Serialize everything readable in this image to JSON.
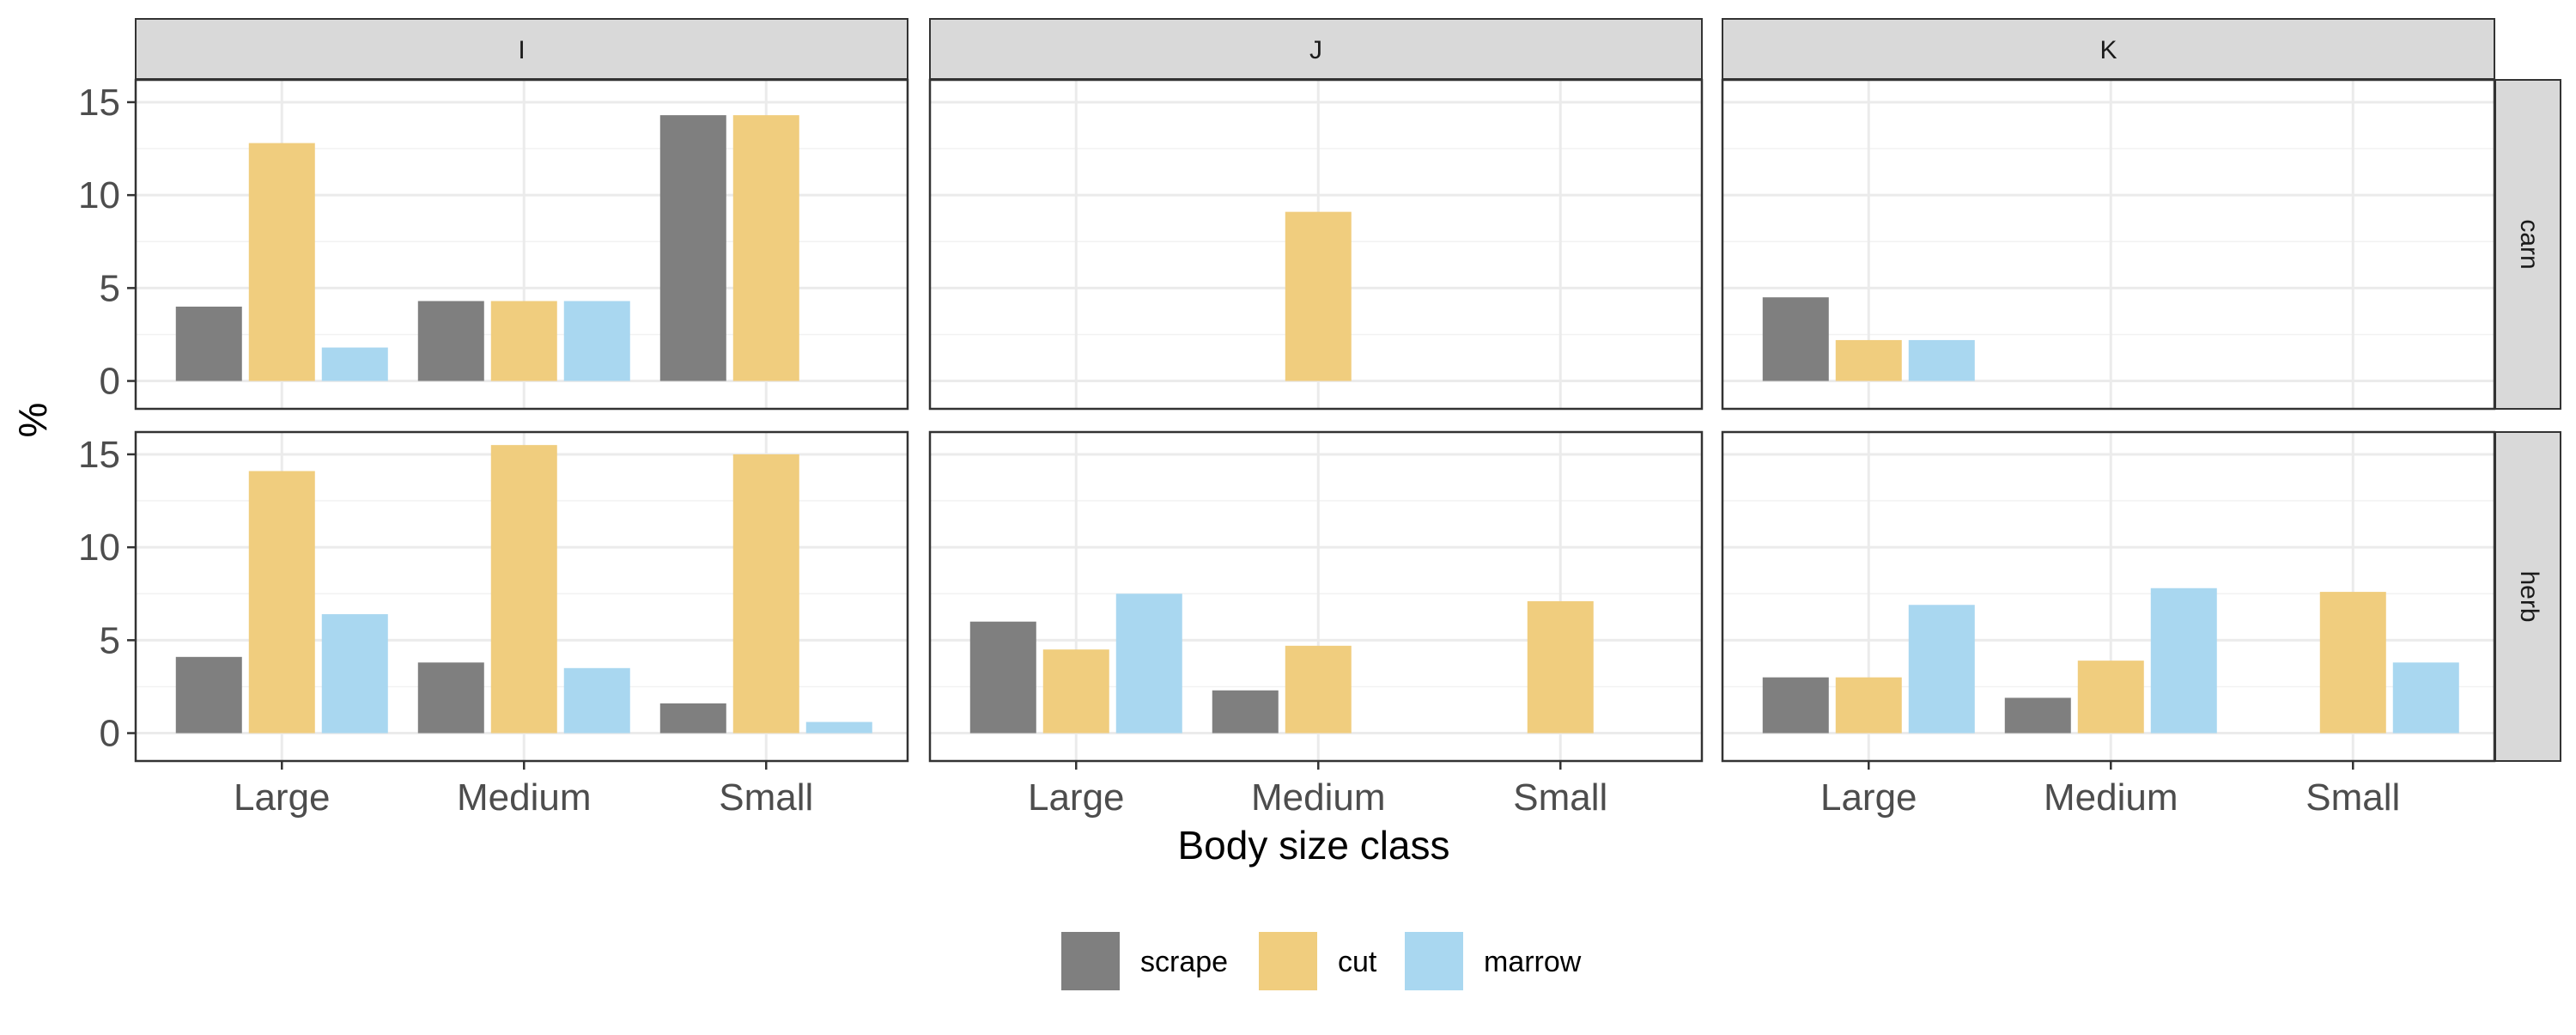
{
  "chart_data": {
    "type": "bar",
    "xlabel": "Body size class",
    "ylabel": "%",
    "ylim": [
      -1.5,
      16.2
    ],
    "yticks": [
      0,
      5,
      10,
      15
    ],
    "categories": [
      "Large",
      "Medium",
      "Small"
    ],
    "columns": [
      "I",
      "J",
      "K"
    ],
    "rows": [
      "carn",
      "herb"
    ],
    "series_names": [
      "scrape",
      "cut",
      "marrow"
    ],
    "colors": {
      "scrape": "#7f7f7f",
      "cut": "#f0cd7e",
      "marrow": "#a9d7f0"
    },
    "grid": true,
    "legend": {
      "position": "bottom"
    },
    "panels": [
      {
        "column": "I",
        "row": "carn",
        "series": [
          {
            "name": "scrape",
            "values": [
              4.0,
              4.3,
              14.3
            ]
          },
          {
            "name": "cut",
            "values": [
              12.8,
              4.3,
              14.3
            ]
          },
          {
            "name": "marrow",
            "values": [
              1.8,
              4.3,
              0
            ]
          }
        ]
      },
      {
        "column": "J",
        "row": "carn",
        "series": [
          {
            "name": "scrape",
            "values": [
              0,
              0,
              0
            ]
          },
          {
            "name": "cut",
            "values": [
              0,
              9.1,
              0
            ]
          },
          {
            "name": "marrow",
            "values": [
              0,
              0,
              0
            ]
          }
        ]
      },
      {
        "column": "K",
        "row": "carn",
        "series": [
          {
            "name": "scrape",
            "values": [
              4.5,
              0,
              0
            ]
          },
          {
            "name": "cut",
            "values": [
              2.2,
              0,
              0
            ]
          },
          {
            "name": "marrow",
            "values": [
              2.2,
              0,
              0
            ]
          }
        ]
      },
      {
        "column": "I",
        "row": "herb",
        "series": [
          {
            "name": "scrape",
            "values": [
              4.1,
              3.8,
              1.6
            ]
          },
          {
            "name": "cut",
            "values": [
              14.1,
              15.5,
              15.0
            ]
          },
          {
            "name": "marrow",
            "values": [
              6.4,
              3.5,
              0.6
            ]
          }
        ]
      },
      {
        "column": "J",
        "row": "herb",
        "series": [
          {
            "name": "scrape",
            "values": [
              6.0,
              2.3,
              0
            ]
          },
          {
            "name": "cut",
            "values": [
              4.5,
              4.7,
              7.1
            ]
          },
          {
            "name": "marrow",
            "values": [
              7.5,
              0,
              0
            ]
          }
        ]
      },
      {
        "column": "K",
        "row": "herb",
        "series": [
          {
            "name": "scrape",
            "values": [
              3.0,
              1.9,
              0
            ]
          },
          {
            "name": "cut",
            "values": [
              3.0,
              3.9,
              7.6
            ]
          },
          {
            "name": "marrow",
            "values": [
              6.9,
              7.8,
              3.8
            ]
          }
        ]
      }
    ]
  }
}
